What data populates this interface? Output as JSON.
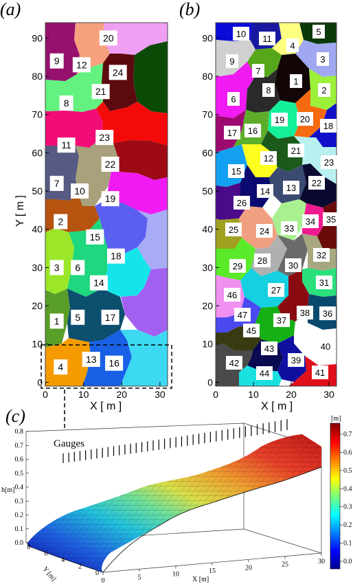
{
  "panel_a": {
    "label": "(a)",
    "xlabel": "X [ m ]",
    "ylabel": "Y [ m ]",
    "xticks": [
      "0",
      "10",
      "20",
      "30"
    ],
    "yticks": [
      "0",
      "10",
      "20",
      "30",
      "40",
      "50",
      "60",
      "70",
      "80",
      "90"
    ],
    "zones": [
      {
        "id": "1",
        "color": "#5a9e2a"
      },
      {
        "id": "2",
        "color": "#b5530f"
      },
      {
        "id": "3",
        "color": "#9ce62a"
      },
      {
        "id": "4",
        "color": "#f59b00"
      },
      {
        "id": "5",
        "color": "#0c4f6e"
      },
      {
        "id": "6",
        "color": "#1ed77e"
      },
      {
        "id": "7",
        "color": "#575a82"
      },
      {
        "id": "8",
        "color": "#63f27f"
      },
      {
        "id": "9",
        "color": "#96106e"
      },
      {
        "id": "10",
        "color": "#a8a17c"
      },
      {
        "id": "11",
        "color": "#f10c78"
      },
      {
        "id": "12",
        "color": "#f6a07e"
      },
      {
        "id": "13",
        "color": "#1860e6"
      },
      {
        "id": "14",
        "color": "#15e5ea"
      },
      {
        "id": "15",
        "color": "#5b5ff0"
      },
      {
        "id": "16",
        "color": "#3dd9f2"
      },
      {
        "id": "17",
        "color": "#a25ff0"
      },
      {
        "id": "18",
        "color": "#a8acf6"
      },
      {
        "id": "19",
        "color": "#f01af2"
      },
      {
        "id": "20",
        "color": "#efa0f2"
      },
      {
        "id": "21",
        "color": "#5c0a0e"
      },
      {
        "id": "22",
        "color": "#9d0a14"
      },
      {
        "id": "23",
        "color": "#f50a0a"
      },
      {
        "id": "24",
        "color": "#0b4a06"
      }
    ]
  },
  "panel_b": {
    "label": "(b)",
    "xlabel": "X [ m ]",
    "xticks": [
      "0",
      "10",
      "20",
      "30"
    ],
    "yticks": [
      "0",
      "10",
      "20",
      "30",
      "40",
      "50",
      "60",
      "70",
      "80",
      "90"
    ],
    "zones": [
      "1",
      "2",
      "3",
      "4",
      "5",
      "6",
      "7",
      "8",
      "9",
      "10",
      "11",
      "12",
      "13",
      "14",
      "15",
      "16",
      "17",
      "18",
      "19",
      "20",
      "21",
      "22",
      "23",
      "24",
      "25",
      "26",
      "27",
      "28",
      "29",
      "30",
      "31",
      "32",
      "33",
      "34",
      "35",
      "36",
      "37",
      "38",
      "39",
      "40",
      "41",
      "42",
      "43",
      "44",
      "45",
      "46",
      "47"
    ]
  },
  "panel_c": {
    "label": "(c)",
    "gauges_label": "Gauges",
    "zlabel": "h[m]",
    "xlabel": "X [m]",
    "ylabel": "Y [m]",
    "zticks": [
      "0.0",
      "0.1",
      "0.2",
      "0.3",
      "0.4",
      "0.5",
      "0.6",
      "0.7",
      "0.8"
    ],
    "xticks": [
      "0",
      "5",
      "10",
      "15",
      "20",
      "25",
      "30"
    ],
    "yticks": [
      "8",
      "6",
      "4",
      "2",
      "0"
    ],
    "colorbar_unit": "[m]",
    "colorbar_ticks": [
      "0.0",
      "0.1",
      "0.2",
      "0.3",
      "0.4",
      "0.5",
      "0.6",
      "0.7"
    ]
  },
  "chart_data": [
    {
      "type": "heatmap",
      "panel": "a",
      "xlabel": "X [ m ]",
      "ylabel": "Y [ m ]",
      "xlim": [
        0,
        32
      ],
      "ylim": [
        -1,
        94
      ],
      "zone_count": 24,
      "zone_centers": [
        {
          "zone": "1",
          "x": 3,
          "y": 16
        },
        {
          "zone": "2",
          "x": 4,
          "y": 42
        },
        {
          "zone": "3",
          "x": 3,
          "y": 30
        },
        {
          "zone": "4",
          "x": 4,
          "y": 4
        },
        {
          "zone": "5",
          "x": 8.5,
          "y": 17
        },
        {
          "zone": "6",
          "x": 8.5,
          "y": 30
        },
        {
          "zone": "7",
          "x": 3,
          "y": 52
        },
        {
          "zone": "8",
          "x": 5.5,
          "y": 73
        },
        {
          "zone": "9",
          "x": 3,
          "y": 84
        },
        {
          "zone": "10",
          "x": 9,
          "y": 50
        },
        {
          "zone": "11",
          "x": 5.5,
          "y": 62
        },
        {
          "zone": "12",
          "x": 9.5,
          "y": 83
        },
        {
          "zone": "13",
          "x": 12,
          "y": 6
        },
        {
          "zone": "14",
          "x": 14,
          "y": 26
        },
        {
          "zone": "15",
          "x": 13,
          "y": 38
        },
        {
          "zone": "16",
          "x": 18,
          "y": 5
        },
        {
          "zone": "17",
          "x": 17,
          "y": 17
        },
        {
          "zone": "18",
          "x": 18.5,
          "y": 33
        },
        {
          "zone": "19",
          "x": 17,
          "y": 48
        },
        {
          "zone": "20",
          "x": 16.5,
          "y": 90
        },
        {
          "zone": "21",
          "x": 14.5,
          "y": 76
        },
        {
          "zone": "22",
          "x": 17,
          "y": 57
        },
        {
          "zone": "23",
          "x": 15.5,
          "y": 64
        },
        {
          "zone": "24",
          "x": 19,
          "y": 81
        }
      ]
    },
    {
      "type": "heatmap",
      "panel": "b",
      "xlabel": "X [ m ]",
      "xlim": [
        0,
        32
      ],
      "ylim": [
        -1,
        94
      ],
      "zone_count": 47
    },
    {
      "type": "area",
      "panel": "c",
      "zlabel": "h[m]",
      "xlabel": "X [m]",
      "ylabel": "Y [m]",
      "xlim": [
        0,
        30
      ],
      "ylim": [
        0,
        9
      ],
      "zlim": [
        0,
        0.8
      ],
      "colorbar_range": [
        0.0,
        0.75
      ],
      "x": [
        0,
        5,
        10,
        15,
        20,
        25,
        30
      ],
      "h_approx": [
        0.0,
        0.13,
        0.25,
        0.37,
        0.48,
        0.62,
        0.72
      ]
    }
  ]
}
